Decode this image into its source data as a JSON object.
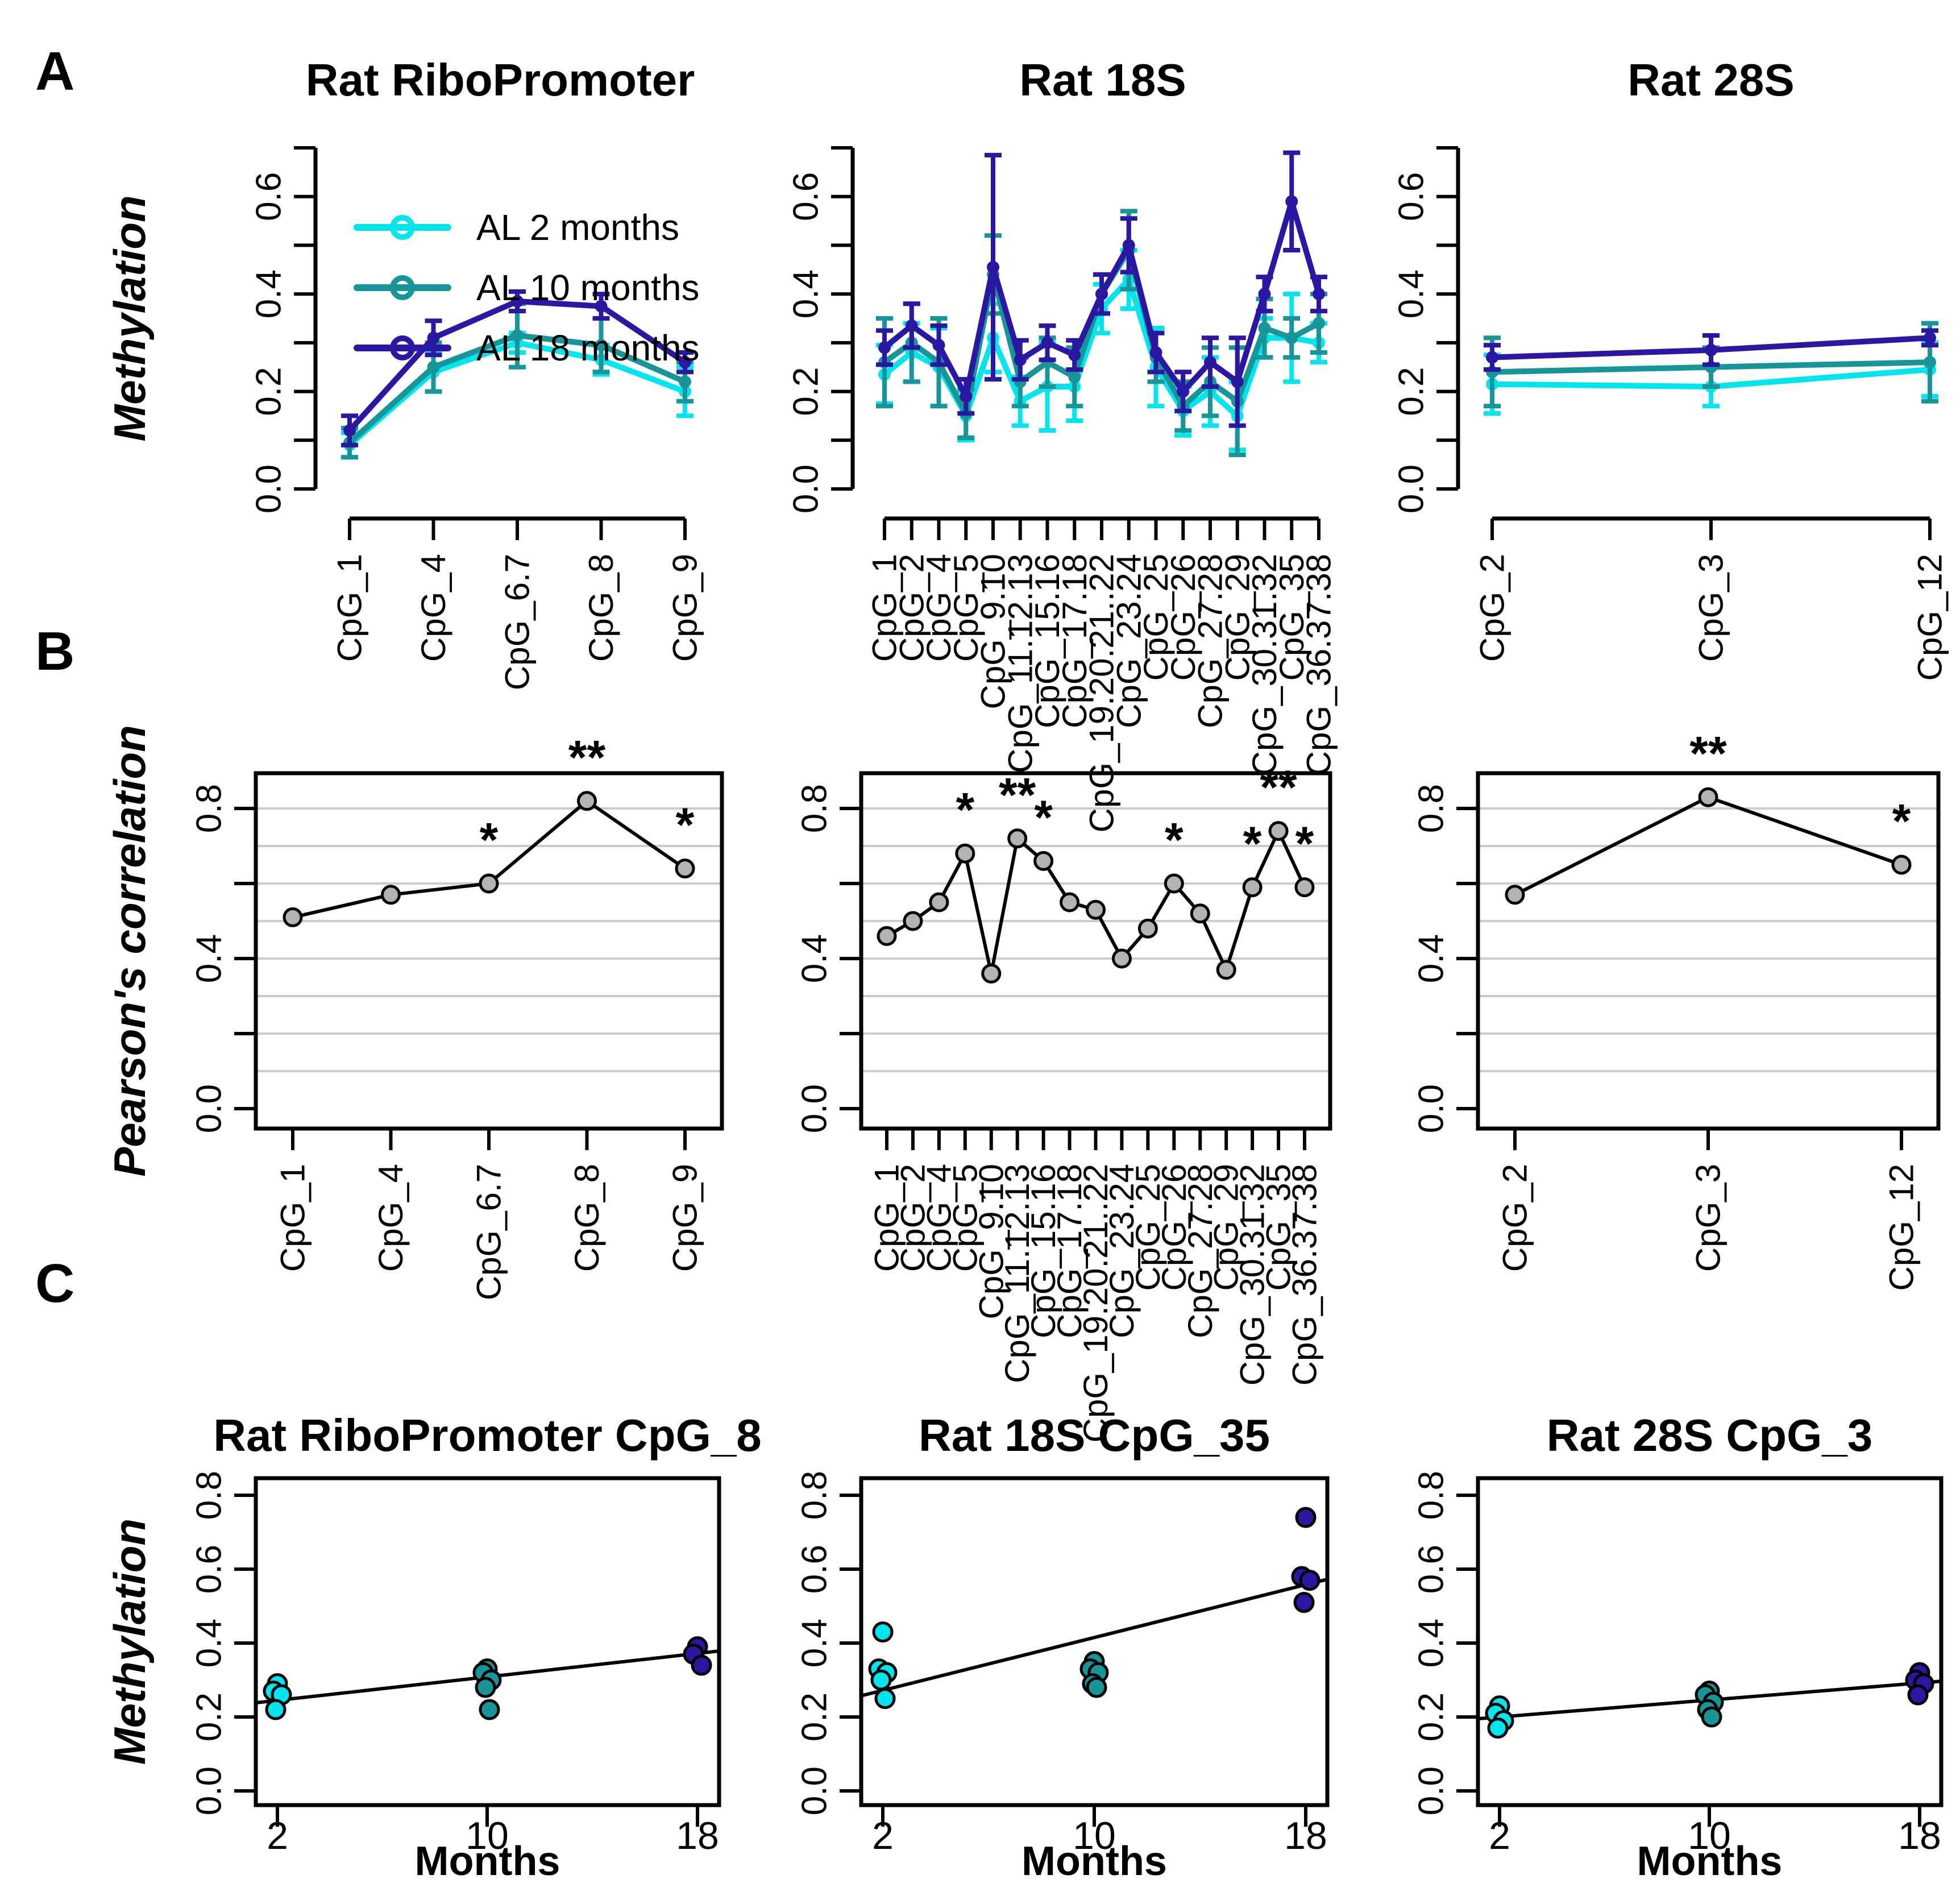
{
  "panel_labels": {
    "a": "A",
    "b": "B",
    "c": "C"
  },
  "colors": {
    "al2": "#00E5EE",
    "al10": "#189599",
    "al18": "#2B18A2",
    "point_gray": "#B3B3B3",
    "grid": "#CBCBCB",
    "axis": "#000000"
  },
  "chart_data": [
    {
      "id": "a1",
      "panel": "A",
      "type": "line",
      "title": "Rat RiboPromoter",
      "ylabel": "Methylation",
      "categories": [
        "CpG_1",
        "CpG_4",
        "CpG_6.7",
        "CpG_8",
        "CpG_9"
      ],
      "ylim": [
        0,
        0.7
      ],
      "yticks": [
        0.0,
        0.2,
        0.4,
        0.6
      ],
      "yticks_minor": [
        0.1,
        0.3,
        0.5,
        0.7
      ],
      "legend": true,
      "grid": false,
      "series": [
        {
          "name": "AL 2 months",
          "color": "al2",
          "values": [
            0.09,
            0.24,
            0.3,
            0.265,
            0.2
          ],
          "errors": [
            0.025,
            0.04,
            0.02,
            0.03,
            0.05
          ]
        },
        {
          "name": "AL 10 months",
          "color": "al10",
          "values": [
            0.095,
            0.25,
            0.315,
            0.295,
            0.22
          ],
          "errors": [
            0.03,
            0.05,
            0.065,
            0.055,
            0.04
          ]
        },
        {
          "name": "AL 18 months",
          "color": "al18",
          "values": [
            0.12,
            0.31,
            0.385,
            0.375,
            0.26
          ],
          "errors": [
            0.03,
            0.035,
            0.02,
            0.025,
            0.02
          ]
        }
      ]
    },
    {
      "id": "a2",
      "panel": "A",
      "type": "line",
      "title": "Rat 18S",
      "ylabel": "",
      "categories": [
        "CpG_1",
        "CpG_2",
        "CpG_4",
        "CpG_5",
        "CpG_9.10",
        "CpG_11.12.13",
        "CpG_15.16",
        "CpG_17.18",
        "CpG_19.20.21..22",
        "CpG_23.24",
        "CpG_25",
        "CpG_26",
        "CpG_27.28",
        "CpG_29",
        "CpG_30.31.32",
        "CpG_35",
        "CpG_36.37.38"
      ],
      "ylim": [
        0,
        0.7
      ],
      "yticks": [
        0.0,
        0.2,
        0.4,
        0.6
      ],
      "yticks_minor": [
        0.1,
        0.3,
        0.5,
        0.7
      ],
      "legend": false,
      "grid": false,
      "series": [
        {
          "name": "AL 2 months",
          "color": "al2",
          "values": [
            0.235,
            0.28,
            0.25,
            0.15,
            0.31,
            0.18,
            0.21,
            0.21,
            0.37,
            0.43,
            0.25,
            0.16,
            0.2,
            0.15,
            0.31,
            0.31,
            0.3
          ],
          "errors": [
            0.06,
            0.06,
            0.08,
            0.05,
            0.07,
            0.05,
            0.09,
            0.07,
            0.05,
            0.06,
            0.08,
            0.05,
            0.07,
            0.07,
            0.04,
            0.09,
            0.04
          ]
        },
        {
          "name": "AL 10 months",
          "color": "al10",
          "values": [
            0.26,
            0.3,
            0.26,
            0.155,
            0.44,
            0.22,
            0.26,
            0.23,
            0.4,
            0.49,
            0.27,
            0.17,
            0.22,
            0.18,
            0.33,
            0.31,
            0.34
          ],
          "errors": [
            0.09,
            0.08,
            0.09,
            0.05,
            0.08,
            0.05,
            0.05,
            0.06,
            0.04,
            0.08,
            0.05,
            0.05,
            0.07,
            0.11,
            0.06,
            0.04,
            0.06
          ]
        },
        {
          "name": "AL 18 months",
          "color": "al18",
          "values": [
            0.29,
            0.335,
            0.295,
            0.19,
            0.455,
            0.265,
            0.3,
            0.275,
            0.4,
            0.5,
            0.28,
            0.2,
            0.26,
            0.22,
            0.4,
            0.59,
            0.4
          ],
          "errors": [
            0.035,
            0.045,
            0.04,
            0.035,
            0.23,
            0.04,
            0.035,
            0.03,
            0.04,
            0.055,
            0.04,
            0.04,
            0.05,
            0.09,
            0.035,
            0.1,
            0.035
          ]
        }
      ]
    },
    {
      "id": "a3",
      "panel": "A",
      "type": "line",
      "title": "Rat 28S",
      "ylabel": "",
      "categories": [
        "CpG_2",
        "CpG_3",
        "CpG_12"
      ],
      "ylim": [
        0,
        0.7
      ],
      "yticks": [
        0.0,
        0.2,
        0.4,
        0.6
      ],
      "yticks_minor": [
        0.1,
        0.3,
        0.5,
        0.7
      ],
      "legend": false,
      "grid": false,
      "series": [
        {
          "name": "AL 2 months",
          "color": "al2",
          "values": [
            0.215,
            0.21,
            0.245
          ],
          "errors": [
            0.06,
            0.04,
            0.055
          ]
        },
        {
          "name": "AL 10 months",
          "color": "al10",
          "values": [
            0.24,
            0.25,
            0.26
          ],
          "errors": [
            0.07,
            0.04,
            0.08
          ]
        },
        {
          "name": "AL 18 months",
          "color": "al18",
          "values": [
            0.27,
            0.285,
            0.31
          ],
          "errors": [
            0.025,
            0.03,
            0.015
          ]
        }
      ]
    },
    {
      "id": "b1",
      "panel": "B",
      "type": "scatter-line",
      "title": "",
      "ylabel": "Pearson's correlation",
      "categories": [
        "CpG_1",
        "CpG_4",
        "CpG_6.7",
        "CpG_8",
        "CpG_9"
      ],
      "ylim": [
        0,
        0.9
      ],
      "yticks": [
        0.0,
        0.4,
        0.8
      ],
      "yticks_minor": [
        0.2,
        0.6
      ],
      "grid": true,
      "gridlines": [
        0.1,
        0.2,
        0.3,
        0.4,
        0.5,
        0.6,
        0.7,
        0.8
      ],
      "values": [
        0.51,
        0.57,
        0.6,
        0.82,
        0.64
      ],
      "stars": [
        "",
        "",
        "*",
        "**",
        "*"
      ]
    },
    {
      "id": "b2",
      "panel": "B",
      "type": "scatter-line",
      "title": "",
      "ylabel": "",
      "categories": [
        "CpG_1",
        "CpG_2",
        "CpG_4",
        "CpG_5",
        "CpG_9.10",
        "CpG_11.12.13",
        "CpG_15.16",
        "CpG_17.18",
        "CpG_19.20.21..22",
        "CpG_23.24",
        "CpG_25",
        "CpG_26",
        "CpG_27.28",
        "CpG_29",
        "CpG_30.31.32",
        "CpG_35",
        "CpG_36.37.38"
      ],
      "ylim": [
        0,
        0.9
      ],
      "yticks": [
        0.0,
        0.4,
        0.8
      ],
      "yticks_minor": [
        0.2,
        0.6
      ],
      "grid": true,
      "gridlines": [
        0.1,
        0.2,
        0.3,
        0.4,
        0.5,
        0.6,
        0.7,
        0.8
      ],
      "values": [
        0.46,
        0.5,
        0.55,
        0.68,
        0.36,
        0.72,
        0.66,
        0.55,
        0.53,
        0.4,
        0.48,
        0.6,
        0.52,
        0.37,
        0.59,
        0.74,
        0.59
      ],
      "stars": [
        "",
        "",
        "",
        "*",
        "",
        "**",
        "*",
        "",
        "",
        "",
        "",
        "*",
        "",
        "",
        "*",
        "**",
        "*"
      ]
    },
    {
      "id": "b3",
      "panel": "B",
      "type": "scatter-line",
      "title": "",
      "ylabel": "",
      "categories": [
        "CpG_2",
        "CpG_3",
        "CpG_12"
      ],
      "ylim": [
        0,
        0.9
      ],
      "yticks": [
        0.0,
        0.4,
        0.8
      ],
      "yticks_minor": [
        0.2,
        0.6
      ],
      "grid": true,
      "gridlines": [
        0.1,
        0.2,
        0.3,
        0.4,
        0.5,
        0.6,
        0.7,
        0.8
      ],
      "values": [
        0.57,
        0.83,
        0.65
      ],
      "stars": [
        "",
        "**",
        "*"
      ]
    },
    {
      "id": "c1",
      "panel": "C",
      "type": "scatter",
      "title": "Rat RiboPromoter CpG_8",
      "ylabel": "Methylation",
      "xlabel": "Months",
      "xticks": [
        2,
        10,
        18
      ],
      "ylim": [
        0,
        0.8
      ],
      "yticks": [
        0.0,
        0.2,
        0.4,
        0.6,
        0.8
      ],
      "groups": [
        {
          "name": "AL 2 months",
          "color": "al2",
          "x": 2,
          "values": [
            0.29,
            0.27,
            0.26,
            0.22
          ]
        },
        {
          "name": "AL 10 months",
          "color": "al10",
          "x": 10,
          "values": [
            0.33,
            0.32,
            0.3,
            0.28,
            0.22
          ]
        },
        {
          "name": "AL 18 months",
          "color": "al18",
          "x": 18,
          "values": [
            0.39,
            0.37,
            0.34
          ]
        }
      ],
      "trend": {
        "x": [
          2,
          18
        ],
        "y": [
          0.245,
          0.372
        ]
      }
    },
    {
      "id": "c2",
      "panel": "C",
      "type": "scatter",
      "title": "Rat 18S CpG_35",
      "ylabel": "",
      "xlabel": "Months",
      "xticks": [
        2,
        10,
        18
      ],
      "ylim": [
        0,
        0.8
      ],
      "yticks": [
        0.0,
        0.2,
        0.4,
        0.6,
        0.8
      ],
      "groups": [
        {
          "name": "AL 2 months",
          "color": "al2",
          "x": 2,
          "values": [
            0.43,
            0.33,
            0.32,
            0.3,
            0.25
          ]
        },
        {
          "name": "AL 10 months",
          "color": "al10",
          "x": 10,
          "values": [
            0.35,
            0.33,
            0.32,
            0.29,
            0.28
          ]
        },
        {
          "name": "AL 18 months",
          "color": "al18",
          "x": 18,
          "values": [
            0.74,
            0.58,
            0.57,
            0.51
          ]
        }
      ],
      "trend": {
        "x": [
          2,
          18
        ],
        "y": [
          0.272,
          0.558
        ]
      }
    },
    {
      "id": "c3",
      "panel": "C",
      "type": "scatter",
      "title": "Rat 28S CpG_3",
      "ylabel": "",
      "xlabel": "Months",
      "xticks": [
        2,
        10,
        18
      ],
      "ylim": [
        0,
        0.8
      ],
      "yticks": [
        0.0,
        0.2,
        0.4,
        0.6,
        0.8
      ],
      "groups": [
        {
          "name": "AL 2 months",
          "color": "al2",
          "x": 2,
          "values": [
            0.23,
            0.21,
            0.19,
            0.17
          ]
        },
        {
          "name": "AL 10 months",
          "color": "al10",
          "x": 10,
          "values": [
            0.27,
            0.26,
            0.24,
            0.22,
            0.2
          ]
        },
        {
          "name": "AL 18 months",
          "color": "al18",
          "x": 18,
          "values": [
            0.32,
            0.3,
            0.29,
            0.26
          ]
        }
      ],
      "trend": {
        "x": [
          2,
          18
        ],
        "y": [
          0.2,
          0.292
        ]
      }
    }
  ]
}
